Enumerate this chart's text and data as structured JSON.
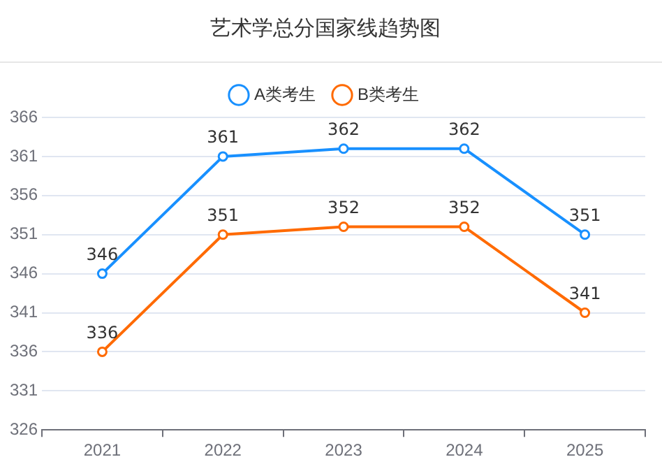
{
  "chart_data": {
    "type": "line",
    "title": "艺术学总分国家线趋势图",
    "categories": [
      "2021",
      "2022",
      "2023",
      "2024",
      "2025"
    ],
    "series": [
      {
        "name": "A类考生",
        "color": "#1890ff",
        "values": [
          346,
          361,
          362,
          362,
          351
        ]
      },
      {
        "name": "B类考生",
        "color": "#ff6a00",
        "values": [
          336,
          351,
          352,
          352,
          341
        ]
      }
    ],
    "ylim": [
      326,
      366
    ],
    "yticks": [
      326,
      331,
      336,
      341,
      346,
      351,
      356,
      361,
      366
    ],
    "grid": "y",
    "legend": "top",
    "marker": "circle",
    "line_style": "solid",
    "data_labels": true
  }
}
